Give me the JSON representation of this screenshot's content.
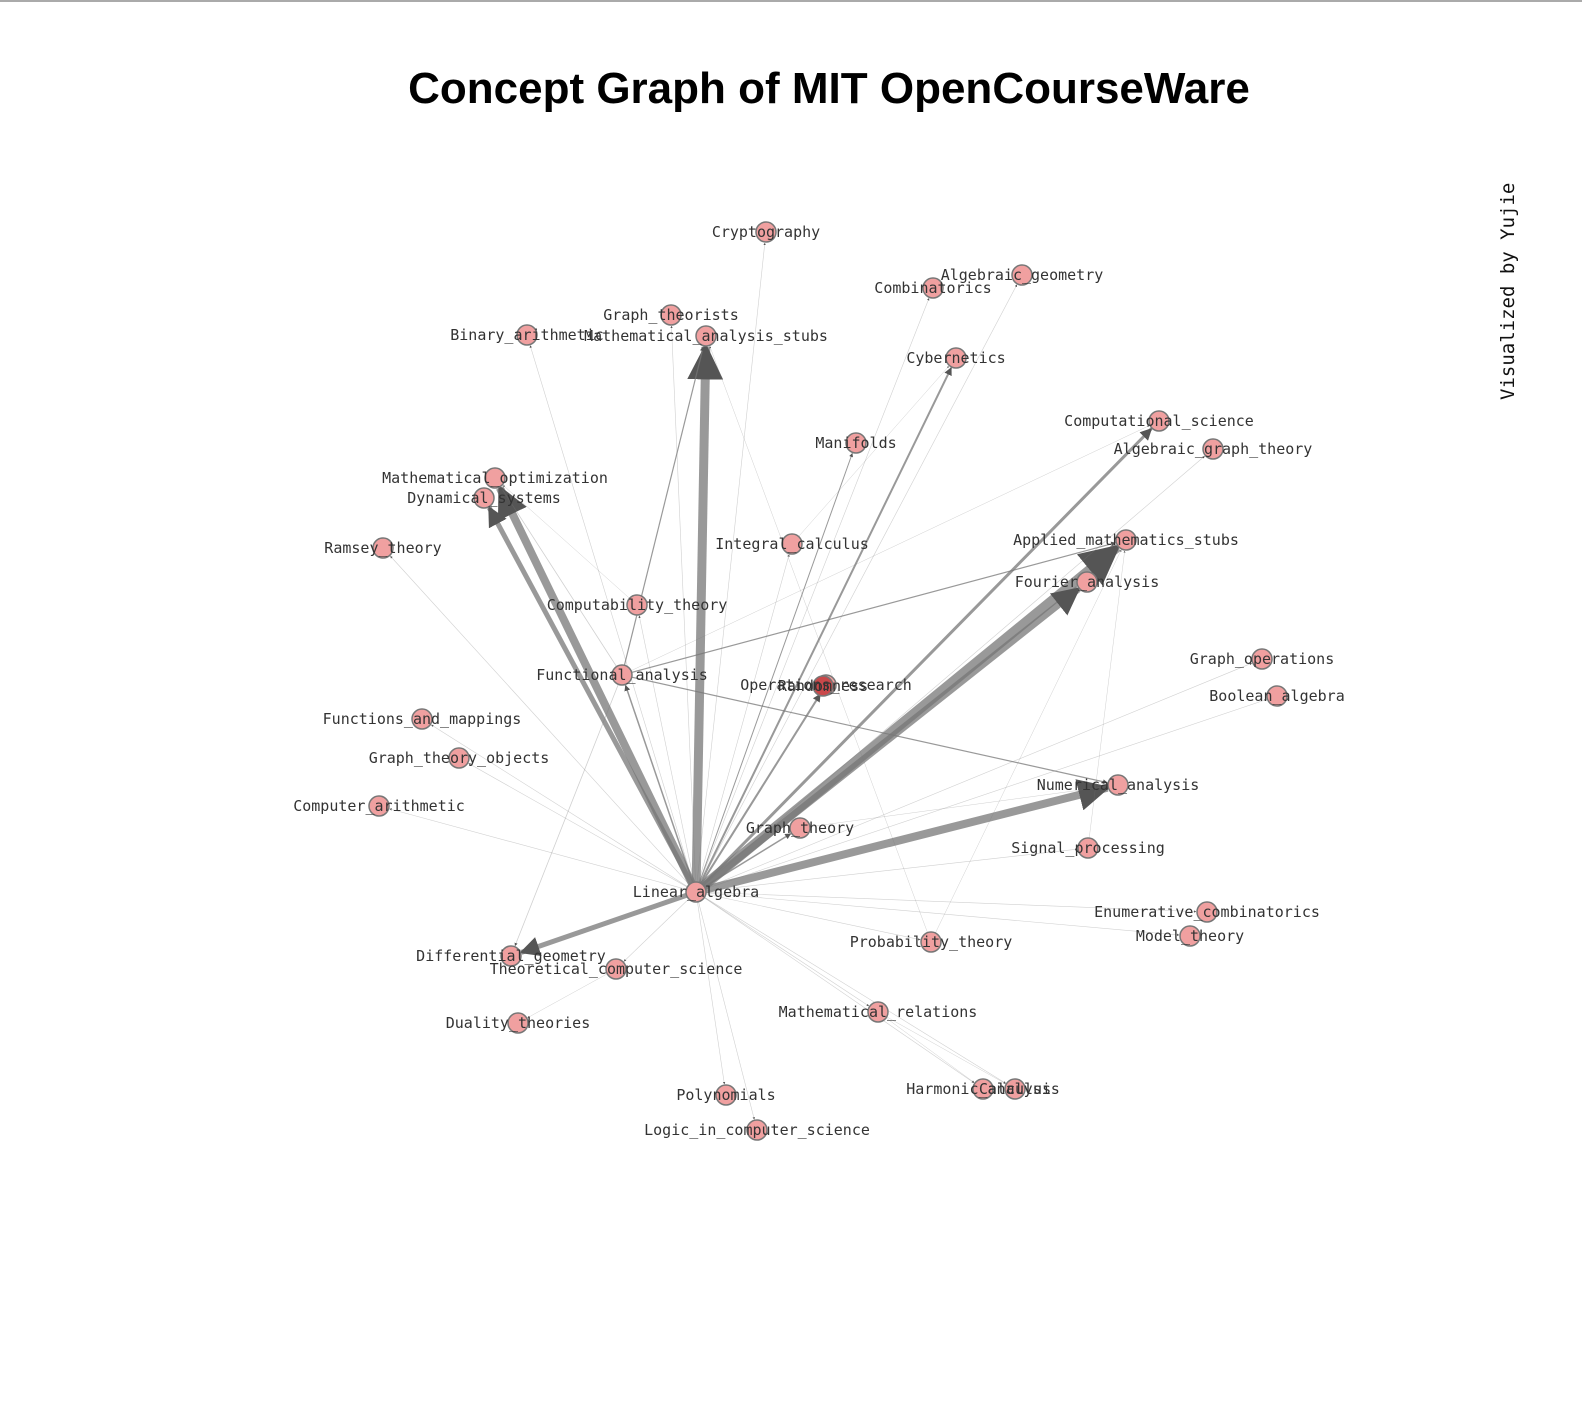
{
  "title": "Concept Graph of MIT OpenCourseWare",
  "credit": "Visualized by Yujie",
  "colors": {
    "node_fill": "#f0a0a0",
    "node_stroke": "#777777",
    "edge": "#777777",
    "label": "#333333"
  },
  "nodes": [
    {
      "id": "Cryptography",
      "label": "Cryptography"
    },
    {
      "id": "Algebraic_geometry",
      "label": "Algebraic_geometry"
    },
    {
      "id": "Combinatorics",
      "label": "Combinatorics"
    },
    {
      "id": "Graph_theorists",
      "label": "Graph_theorists"
    },
    {
      "id": "Binary_arithmetic",
      "label": "Binary_arithmetic"
    },
    {
      "id": "Mathematical_analysis_stubs",
      "label": "Mathematical_analysis_stubs"
    },
    {
      "id": "Cybernetics",
      "label": "Cybernetics"
    },
    {
      "id": "Computational_science",
      "label": "Computational_science"
    },
    {
      "id": "Algebraic_graph_theory",
      "label": "Algebraic_graph_theory"
    },
    {
      "id": "Manifolds",
      "label": "Manifolds"
    },
    {
      "id": "Mathematical_optimization",
      "label": "Mathematical_optimization"
    },
    {
      "id": "Dynamical_systems",
      "label": "Dynamical_systems"
    },
    {
      "id": "Applied_mathematics_stubs",
      "label": "Applied_mathematics_stubs"
    },
    {
      "id": "Integral_calculus",
      "label": "Integral_calculus"
    },
    {
      "id": "Ramsey_theory",
      "label": "Ramsey_theory"
    },
    {
      "id": "Fourier_analysis",
      "label": "Fourier_analysis"
    },
    {
      "id": "Computability_theory",
      "label": "Computability_theory"
    },
    {
      "id": "Graph_operations",
      "label": "Graph_operations"
    },
    {
      "id": "Functional_analysis",
      "label": "Functional_analysis"
    },
    {
      "id": "Operations_research",
      "label": "Operations_research"
    },
    {
      "id": "Randomness",
      "label": "Randomness"
    },
    {
      "id": "Boolean_algebra",
      "label": "Boolean_algebra"
    },
    {
      "id": "Functions_and_mappings",
      "label": "Functions_and_mappings"
    },
    {
      "id": "Graph_theory_objects",
      "label": "Graph_theory_objects"
    },
    {
      "id": "Numerical_analysis",
      "label": "Numerical_analysis"
    },
    {
      "id": "Computer_arithmetic",
      "label": "Computer_arithmetic"
    },
    {
      "id": "Graph_theory",
      "label": "Graph_theory"
    },
    {
      "id": "Signal_processing",
      "label": "Signal_processing"
    },
    {
      "id": "Linear_algebra",
      "label": "Linear_algebra"
    },
    {
      "id": "Enumerative_combinatorics",
      "label": "Enumerative_combinatorics"
    },
    {
      "id": "Model_theory",
      "label": "Model_theory"
    },
    {
      "id": "Probability_theory",
      "label": "Probability_theory"
    },
    {
      "id": "Differential_geometry",
      "label": "Differential_geometry"
    },
    {
      "id": "Theoretical_computer_science",
      "label": "Theoretical_computer_science"
    },
    {
      "id": "Mathematical_relations",
      "label": "Mathematical_relations"
    },
    {
      "id": "Duality_theories",
      "label": "Duality_theories"
    },
    {
      "id": "Polynomials",
      "label": "Polynomials"
    },
    {
      "id": "Harmonic_analysis",
      "label": "Harmonic_analysis"
    },
    {
      "id": "Calculus",
      "label": "Calculus"
    },
    {
      "id": "Logic_in_computer_science",
      "label": "Logic_in_computer_science"
    }
  ],
  "edges": [
    {
      "source": "Linear_algebra",
      "target": "Mathematical_analysis_stubs",
      "weight": 9
    },
    {
      "source": "Linear_algebra",
      "target": "Applied_mathematics_stubs",
      "weight": 10
    },
    {
      "source": "Linear_algebra",
      "target": "Fourier_analysis",
      "weight": 7
    },
    {
      "source": "Linear_algebra",
      "target": "Mathematical_optimization",
      "weight": 8
    },
    {
      "source": "Linear_algebra",
      "target": "Dynamical_systems",
      "weight": 5
    },
    {
      "source": "Linear_algebra",
      "target": "Numerical_analysis",
      "weight": 8
    },
    {
      "source": "Linear_algebra",
      "target": "Differential_geometry",
      "weight": 5
    },
    {
      "source": "Linear_algebra",
      "target": "Computational_science",
      "weight": 3
    },
    {
      "source": "Linear_algebra",
      "target": "Cybernetics",
      "weight": 2
    },
    {
      "source": "Linear_algebra",
      "target": "Operations_research",
      "weight": 2
    },
    {
      "source": "Linear_algebra",
      "target": "Manifolds",
      "weight": 1
    },
    {
      "source": "Linear_algebra",
      "target": "Functional_analysis",
      "weight": 1.5
    },
    {
      "source": "Linear_algebra",
      "target": "Graph_theory",
      "weight": 1.5
    },
    {
      "source": "Linear_algebra",
      "target": "Cryptography",
      "weight": 0.6
    },
    {
      "source": "Linear_algebra",
      "target": "Combinatorics",
      "weight": 0.6
    },
    {
      "source": "Linear_algebra",
      "target": "Algebraic_geometry",
      "weight": 0.6
    },
    {
      "source": "Linear_algebra",
      "target": "Binary_arithmetic",
      "weight": 0.6
    },
    {
      "source": "Linear_algebra",
      "target": "Graph_theorists",
      "weight": 0.6
    },
    {
      "source": "Linear_algebra",
      "target": "Algebraic_graph_theory",
      "weight": 0.6
    },
    {
      "source": "Linear_algebra",
      "target": "Integral_calculus",
      "weight": 0.6
    },
    {
      "source": "Linear_algebra",
      "target": "Ramsey_theory",
      "weight": 0.6
    },
    {
      "source": "Linear_algebra",
      "target": "Computability_theory",
      "weight": 0.6
    },
    {
      "source": "Linear_algebra",
      "target": "Graph_operations",
      "weight": 0.6
    },
    {
      "source": "Linear_algebra",
      "target": "Boolean_algebra",
      "weight": 0.6
    },
    {
      "source": "Linear_algebra",
      "target": "Functions_and_mappings",
      "weight": 0.6
    },
    {
      "source": "Linear_algebra",
      "target": "Graph_theory_objects",
      "weight": 0.6
    },
    {
      "source": "Linear_algebra",
      "target": "Computer_arithmetic",
      "weight": 0.6
    },
    {
      "source": "Linear_algebra",
      "target": "Signal_processing",
      "weight": 0.6
    },
    {
      "source": "Linear_algebra",
      "target": "Enumerative_combinatorics",
      "weight": 0.6
    },
    {
      "source": "Linear_algebra",
      "target": "Model_theory",
      "weight": 0.6
    },
    {
      "source": "Linear_algebra",
      "target": "Theoretical_computer_science",
      "weight": 0.6
    },
    {
      "source": "Linear_algebra",
      "target": "Mathematical_relations",
      "weight": 0.6
    },
    {
      "source": "Linear_algebra",
      "target": "Polynomials",
      "weight": 0.6
    },
    {
      "source": "Linear_algebra",
      "target": "Logic_in_computer_science",
      "weight": 0.6
    },
    {
      "source": "Linear_algebra",
      "target": "Harmonic_analysis",
      "weight": 0.6
    },
    {
      "source": "Linear_algebra",
      "target": "Calculus",
      "weight": 0.6
    },
    {
      "source": "Linear_algebra",
      "target": "Probability_theory",
      "weight": 0.6
    },
    {
      "source": "Functional_analysis",
      "target": "Mathematical_analysis_stubs",
      "weight": 1.2
    },
    {
      "source": "Functional_analysis",
      "target": "Applied_mathematics_stubs",
      "weight": 1.2
    },
    {
      "source": "Functional_analysis",
      "target": "Numerical_analysis",
      "weight": 1.2
    },
    {
      "source": "Functional_analysis",
      "target": "Differential_geometry",
      "weight": 0.8
    },
    {
      "source": "Functional_analysis",
      "target": "Mathematical_optimization",
      "weight": 0.8
    },
    {
      "source": "Functional_analysis",
      "target": "Computational_science",
      "weight": 0.5
    },
    {
      "source": "Probability_theory",
      "target": "Mathematical_analysis_stubs",
      "weight": 0.5
    },
    {
      "source": "Probability_theory",
      "target": "Applied_mathematics_stubs",
      "weight": 0.5
    },
    {
      "source": "Mathematical_relations",
      "target": "Harmonic_analysis",
      "weight": 0.5
    },
    {
      "source": "Mathematical_relations",
      "target": "Calculus",
      "weight": 0.5
    },
    {
      "source": "Theoretical_computer_science",
      "target": "Duality_theories",
      "weight": 0.5
    },
    {
      "source": "Integral_calculus",
      "target": "Cybernetics",
      "weight": 0.5
    },
    {
      "source": "Computability_theory",
      "target": "Mathematical_optimization",
      "weight": 0.5
    },
    {
      "source": "Graph_theory",
      "target": "Numerical_analysis",
      "weight": 0.5
    },
    {
      "source": "Signal_processing",
      "target": "Applied_mathematics_stubs",
      "weight": 0.5
    }
  ]
}
